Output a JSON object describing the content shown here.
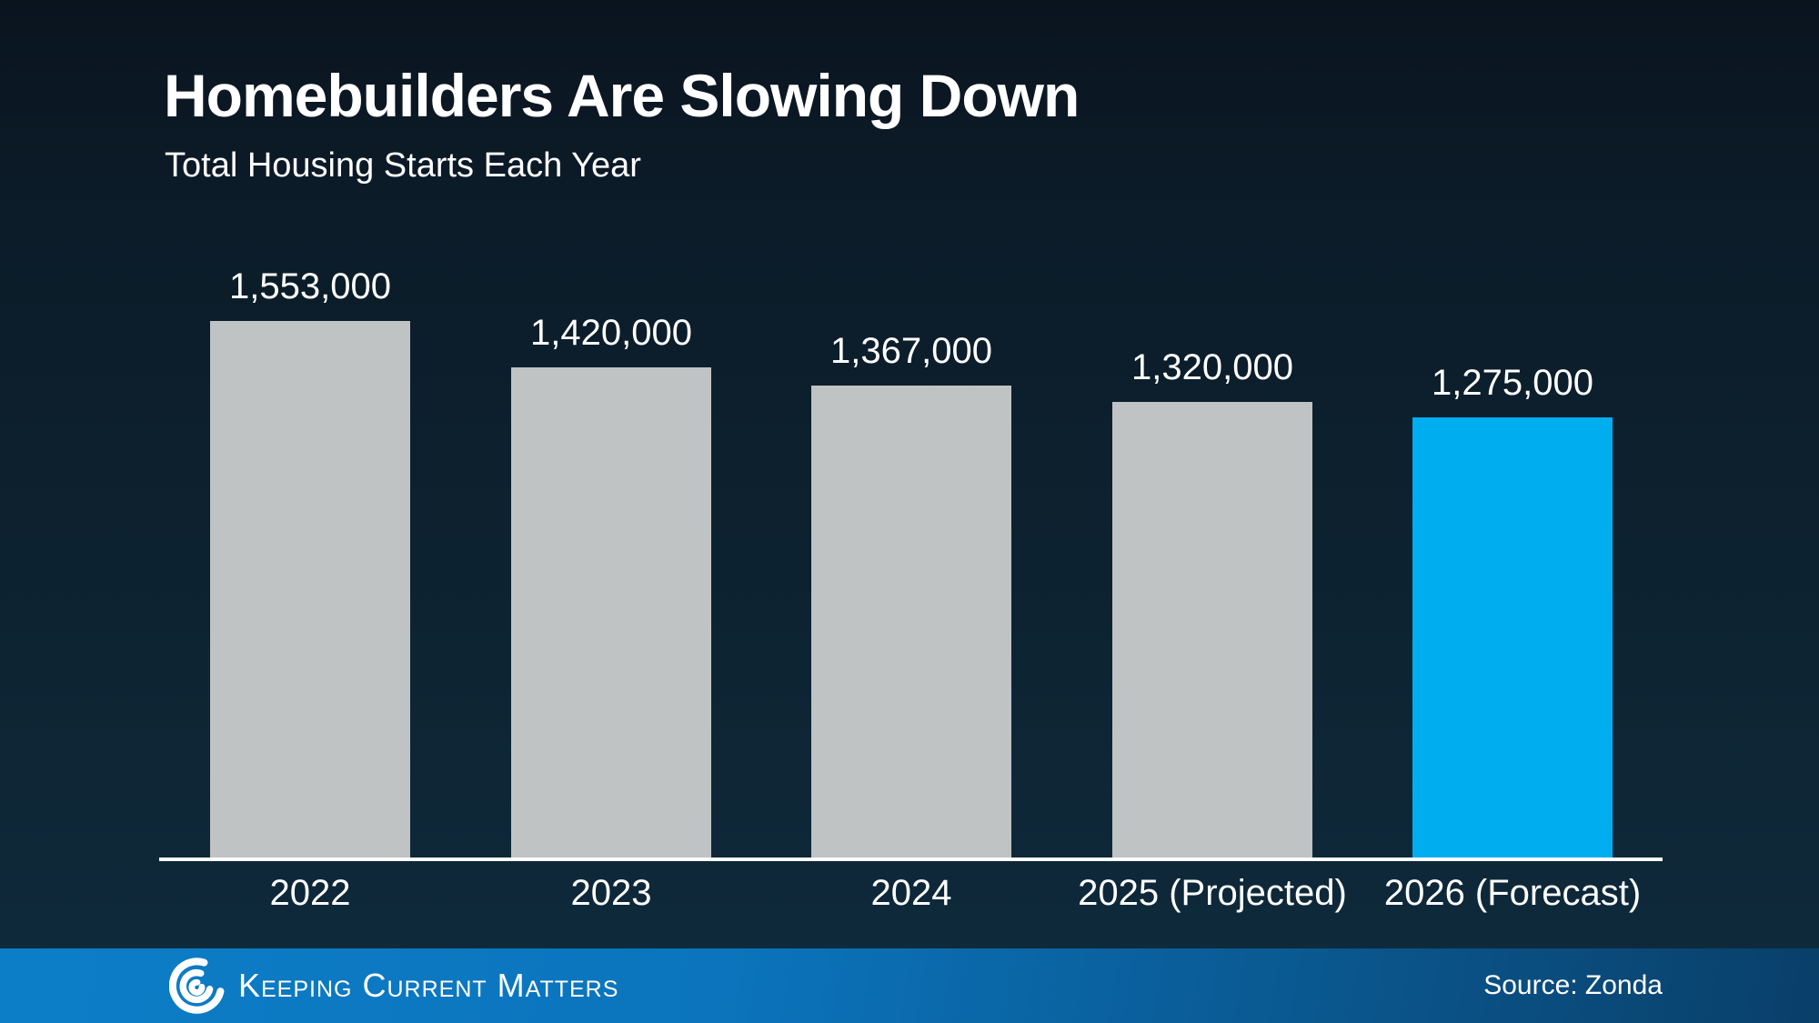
{
  "chart_data": {
    "type": "bar",
    "title": "Homebuilders Are Slowing Down",
    "subtitle": "Total Housing Starts Each Year",
    "categories": [
      "2022",
      "2023",
      "2024",
      "2025 (Projected)",
      "2026 (Forecast)"
    ],
    "values": [
      1553000,
      1420000,
      1367000,
      1320000,
      1275000
    ],
    "value_labels": [
      "1,553,000",
      "1,420,000",
      "1,367,000",
      "1,320,000",
      "1,275,000"
    ],
    "bar_colors": [
      "#bfc3c4",
      "#bfc3c4",
      "#bfc3c4",
      "#bfc3c4",
      "#00aeef"
    ],
    "highlight_color": "#00aeef",
    "default_bar_color": "#bfc3c4",
    "ylim": [
      0,
      1553000
    ],
    "grid": false,
    "legend_position": "none",
    "xlabel": "",
    "ylabel": "",
    "axis_line_color": "#ffffff",
    "label_color": "#ffffff"
  },
  "footer": {
    "brand": "Keeping Current Matters",
    "logo_icon": "kcm-swirl-icon",
    "source": "Source: Zonda",
    "bar_color_left": "#0c7ec8",
    "bar_color_right": "#093f69"
  },
  "background": {
    "top_color": "#0a141f",
    "bottom_color": "#0e2b3d"
  }
}
